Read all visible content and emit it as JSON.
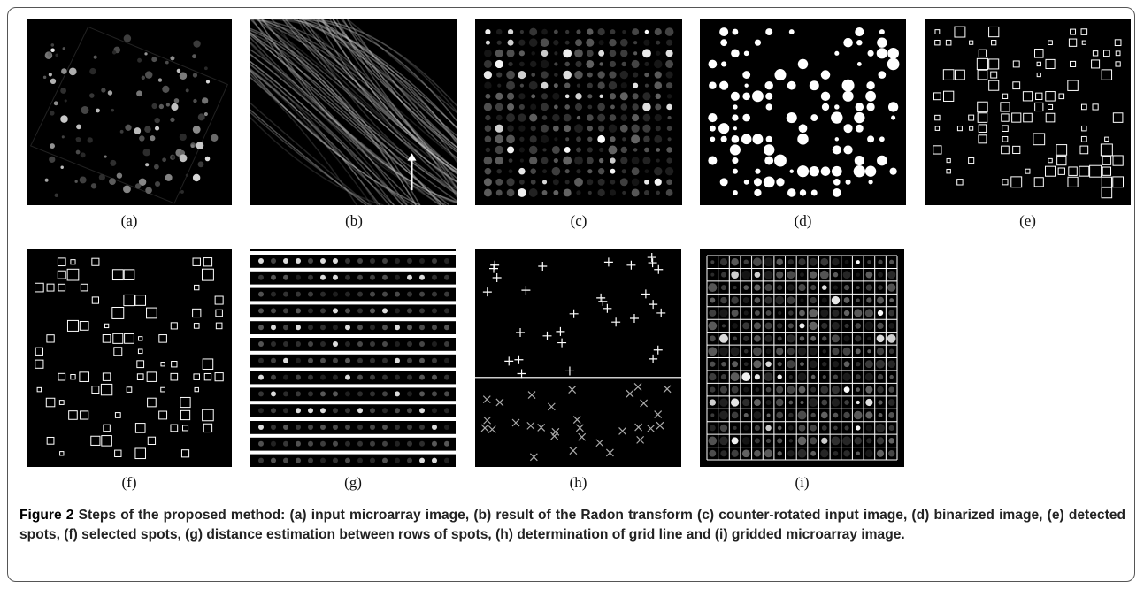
{
  "figure": {
    "panels": [
      "(a)",
      "(b)",
      "(c)",
      "(d)",
      "(e)",
      "(f)",
      "(g)",
      "(h)",
      "(i)"
    ],
    "caption": {
      "label": "Figure 2",
      "text": "Steps of the proposed method: (a) input microarray image, (b) result of the Radon transform (c) counter-rotated input image, (d) binarized image, (e) detected spots, (f) selected spots, (g) distance estimation between rows of spots, (h) determination of grid line and (i) gridded microarray image."
    }
  }
}
